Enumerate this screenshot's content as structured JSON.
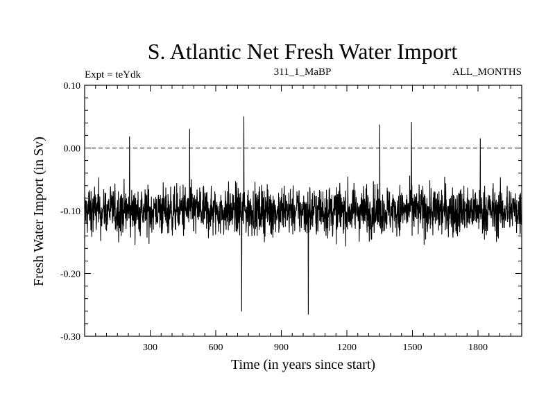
{
  "chart_data": {
    "type": "line",
    "title": "S. Atlantic Net Fresh Water Import",
    "subtitle_left": "Expt = teYdk",
    "subtitle_center": "311_1_MaBP",
    "subtitle_right": "ALL_MONTHS",
    "xlabel": "Time (in years since start)",
    "ylabel": "Fresh Water Import (in Sv)",
    "xlim": [
      0,
      2000
    ],
    "ylim": [
      -0.3,
      0.1
    ],
    "xticks": [
      300,
      600,
      900,
      1200,
      1500,
      1800
    ],
    "xtick_labels": [
      "300",
      "600",
      "900",
      "1200",
      "1500",
      "1800"
    ],
    "yticks": [
      -0.3,
      -0.2,
      -0.1,
      0.0,
      0.1
    ],
    "ytick_labels": [
      "-0.30",
      "-0.20",
      "-0.10",
      "0.00",
      "0.10"
    ],
    "reference_line": {
      "y": 0.0,
      "style": "dashed"
    },
    "series": [
      {
        "name": "Net Fresh Water Import",
        "stats": {
          "n_points": 2000,
          "mean": -0.1,
          "noise_amplitude": 0.04
        },
        "notable_points": [
          {
            "x": 205,
            "y": 0.018
          },
          {
            "x": 480,
            "y": 0.03
          },
          {
            "x": 718,
            "y": -0.26
          },
          {
            "x": 728,
            "y": 0.05
          },
          {
            "x": 1023,
            "y": -0.265
          },
          {
            "x": 1350,
            "y": 0.037
          },
          {
            "x": 1495,
            "y": 0.041
          },
          {
            "x": 1810,
            "y": 0.015
          }
        ]
      }
    ]
  }
}
